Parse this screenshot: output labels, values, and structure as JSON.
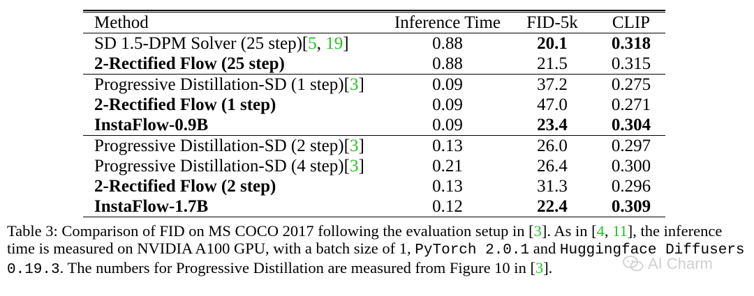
{
  "table": {
    "headers": [
      "Method",
      "Inference Time",
      "FID-5k",
      "CLIP"
    ],
    "groups": [
      [
        {
          "method": "SD 1.5-DPM Solver (25 step)[",
          "cites": [
            "5",
            "19"
          ],
          "close": "]",
          "time": "0.88",
          "fid": "20.1",
          "clip": "0.318",
          "bold_method": false,
          "bold_fid": true,
          "bold_clip": true
        },
        {
          "method": "2-Rectified Flow (25 step)",
          "cites": [],
          "close": "",
          "time": "0.88",
          "fid": "21.5",
          "clip": "0.315",
          "bold_method": true,
          "bold_fid": false,
          "bold_clip": false
        }
      ],
      [
        {
          "method": "Progressive Distillation-SD (1 step)[",
          "cites": [
            "3"
          ],
          "close": "]",
          "time": "0.09",
          "fid": "37.2",
          "clip": "0.275",
          "bold_method": false,
          "bold_fid": false,
          "bold_clip": false
        },
        {
          "method": "2-Rectified Flow (1 step)",
          "cites": [],
          "close": "",
          "time": "0.09",
          "fid": "47.0",
          "clip": "0.271",
          "bold_method": true,
          "bold_fid": false,
          "bold_clip": false
        },
        {
          "method": "InstaFlow-0.9B",
          "cites": [],
          "close": "",
          "time": "0.09",
          "fid": "23.4",
          "clip": "0.304",
          "bold_method": true,
          "bold_fid": true,
          "bold_clip": true
        }
      ],
      [
        {
          "method": "Progressive Distillation-SD (2 step)[",
          "cites": [
            "3"
          ],
          "close": "]",
          "time": "0.13",
          "fid": "26.0",
          "clip": "0.297",
          "bold_method": false,
          "bold_fid": false,
          "bold_clip": false
        },
        {
          "method": "Progressive Distillation-SD (4 step)[",
          "cites": [
            "3"
          ],
          "close": "]",
          "time": "0.21",
          "fid": "26.4",
          "clip": "0.300",
          "bold_method": false,
          "bold_fid": false,
          "bold_clip": false
        },
        {
          "method": "2-Rectified Flow (2 step)",
          "cites": [],
          "close": "",
          "time": "0.13",
          "fid": "31.3",
          "clip": "0.296",
          "bold_method": true,
          "bold_fid": false,
          "bold_clip": false
        },
        {
          "method": "InstaFlow-1.7B",
          "cites": [],
          "close": "",
          "time": "0.12",
          "fid": "22.4",
          "clip": "0.309",
          "bold_method": true,
          "bold_fid": true,
          "bold_clip": true
        }
      ]
    ]
  },
  "caption": {
    "label": "Table 3:",
    "t1": " Comparison of FID on MS COCO 2017 following the evaluation setup in [",
    "c1": "3",
    "t2": "].  As in [",
    "c2": "4",
    "t3": ", ",
    "c3": "11",
    "t4": "], the inference time is measured on NVIDIA A100 GPU, with a batch size of 1, ",
    "m1": "PyTorch 2.0.1",
    "t5": " and ",
    "m2": "Huggingface Diffusers 0.19.3",
    "t6": ". The numbers for Progressive Distillation are measured from Figure 10 in [",
    "c4": "3",
    "t7": "]."
  },
  "watermark": {
    "text": "AI Charm",
    "icon": "wechat-icon"
  },
  "colors": {
    "citation": "#22c322",
    "watermark": "#cfcfcf"
  }
}
